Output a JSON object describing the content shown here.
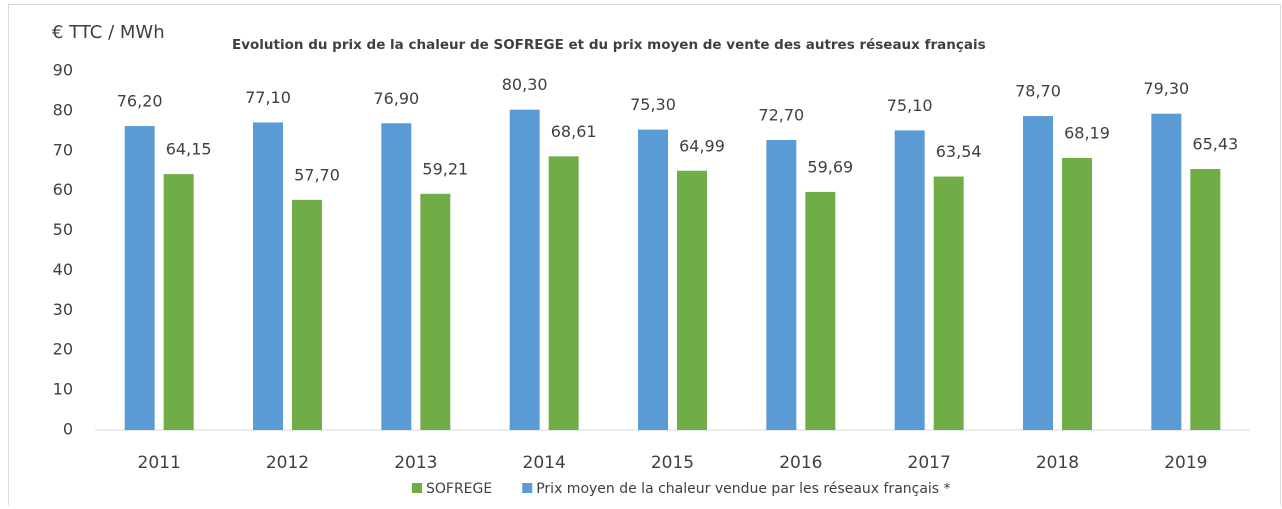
{
  "chart_data": {
    "type": "bar",
    "title": "Evolution du prix de la chaleur de SOFREGE et du prix moyen de vente des autres réseaux français",
    "y_label": "€ TTC / MWh",
    "categories": [
      "2011",
      "2012",
      "2013",
      "2014",
      "2015",
      "2016",
      "2017",
      "2018",
      "2019"
    ],
    "series": [
      {
        "name": "SOFREGE",
        "color": "#70ad47",
        "values": [
          64.15,
          57.7,
          59.21,
          68.61,
          64.99,
          59.69,
          63.54,
          68.19,
          65.43
        ],
        "value_labels": [
          "64,15",
          "57,70",
          "59,21",
          "68,61",
          "64,99",
          "59,69",
          "63,54",
          "68,19",
          "65,43"
        ]
      },
      {
        "name": "Prix moyen de la chaleur vendue par les réseaux français *",
        "color": "#5b9bd5",
        "values": [
          76.2,
          77.1,
          76.9,
          80.3,
          75.3,
          72.7,
          75.1,
          78.7,
          79.3
        ],
        "value_labels": [
          "76,20",
          "77,10",
          "76,90",
          "80,30",
          "75,30",
          "72,70",
          "75,10",
          "78,70",
          "79,30"
        ]
      }
    ],
    "ylim": [
      0,
      90
    ],
    "yticks": [
      0,
      10,
      20,
      30,
      40,
      50,
      60,
      70,
      80,
      90
    ],
    "grid": false
  }
}
